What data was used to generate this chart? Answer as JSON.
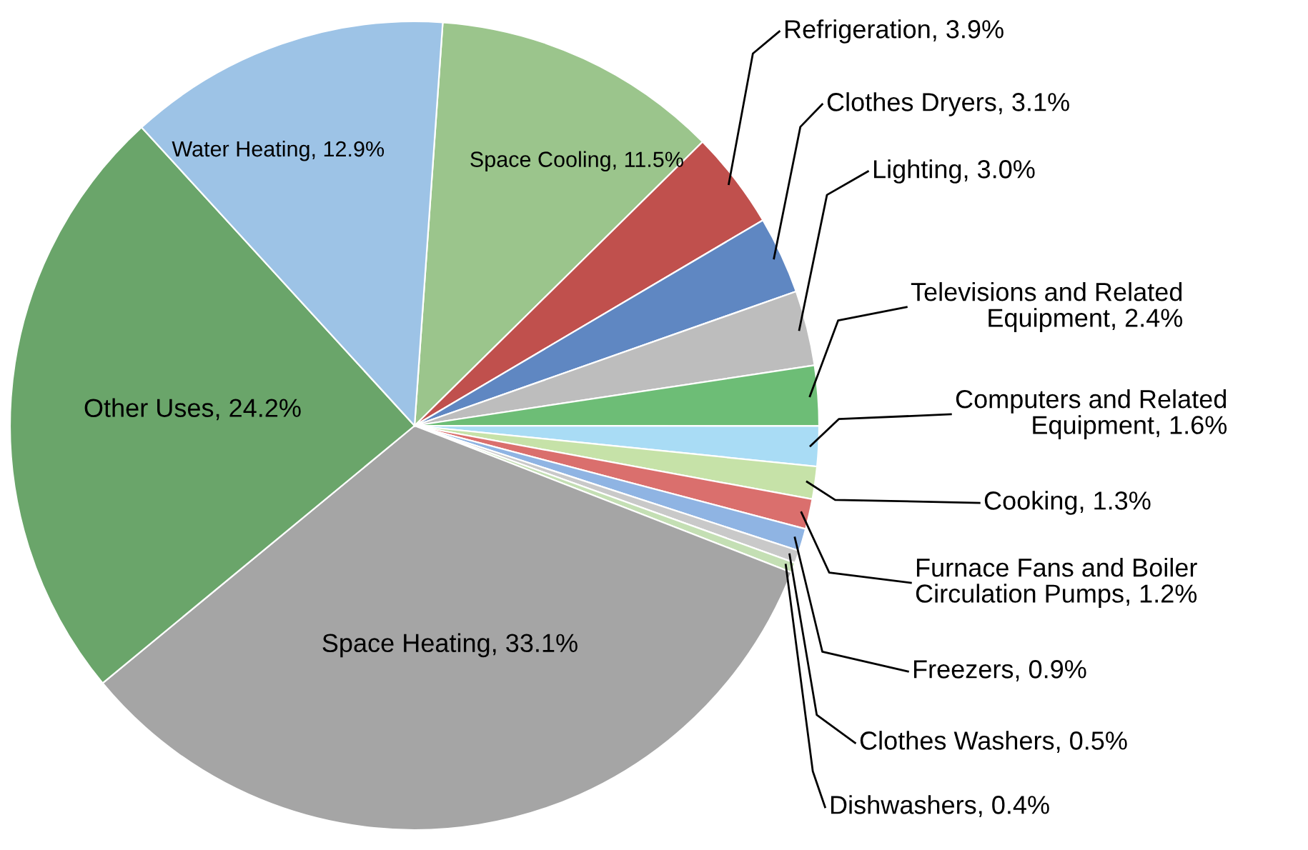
{
  "chart_data": {
    "type": "pie",
    "categories": [
      "Space Cooling",
      "Refrigeration",
      "Clothes Dryers",
      "Lighting",
      "Televisions and Related Equipment",
      "Computers and Related Equipment",
      "Cooking",
      "Furnace Fans and Boiler Circulation Pumps",
      "Freezers",
      "Clothes Washers",
      "Dishwashers",
      "Space Heating",
      "Other Uses",
      "Water Heating"
    ],
    "values": [
      11.5,
      3.9,
      3.1,
      3.0,
      2.4,
      1.6,
      1.3,
      1.2,
      0.9,
      0.5,
      0.4,
      33.1,
      24.2,
      12.9
    ],
    "value_labels": [
      "11.5%",
      "3.9%",
      "3.1%",
      "3.0%",
      "2.4%",
      "1.6%",
      "1.3%",
      "1.2%",
      "0.9%",
      "0.5%",
      "0.4%",
      "33.1%",
      "24.2%",
      "12.9%"
    ],
    "colors": [
      "#9bc58c",
      "#c0504d",
      "#5f87c2",
      "#bdbdbd",
      "#6dbd76",
      "#a9dcf5",
      "#c6e2a8",
      "#da6f6d",
      "#8fb4e3",
      "#c9c9c9",
      "#c4dfb4",
      "#a5a5a5",
      "#6aa56a",
      "#9dc3e6"
    ],
    "legend": false
  }
}
